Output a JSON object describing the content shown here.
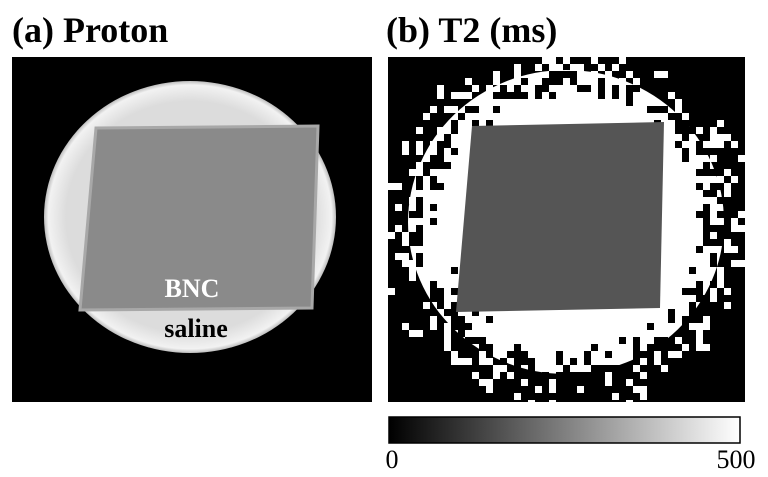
{
  "panels": [
    {
      "title": "(a) Proton",
      "labels": [
        "BNC",
        "saline"
      ]
    },
    {
      "title": "(b) T2 (ms)"
    }
  ],
  "colorbar": {
    "min": 0,
    "max": 500
  }
}
